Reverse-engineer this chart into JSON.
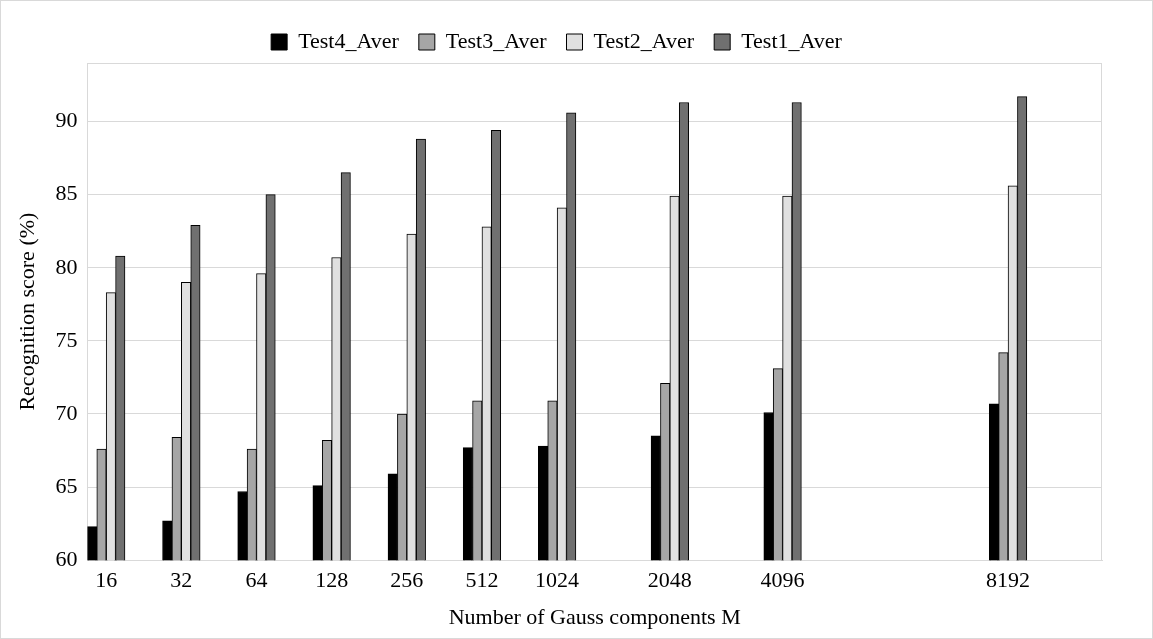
{
  "chart_data": {
    "type": "bar",
    "xlabel": "Number of Gauss components M",
    "ylabel": "Recognition score (%)",
    "categories": [
      "16",
      null,
      "32",
      null,
      "64",
      null,
      "128",
      null,
      "256",
      null,
      "512",
      null,
      "1024",
      null,
      null,
      "2048",
      null,
      null,
      "4096",
      null,
      null,
      null,
      null,
      null,
      "8192",
      null,
      null
    ],
    "series": [
      {
        "name": "Test4_Aver",
        "color": "#000000",
        "values": [
          62.3,
          null,
          62.7,
          null,
          64.7,
          null,
          65.1,
          null,
          65.9,
          null,
          67.7,
          null,
          67.8,
          null,
          null,
          68.5,
          null,
          null,
          70.1,
          null,
          null,
          null,
          null,
          null,
          70.7,
          null,
          null
        ]
      },
      {
        "name": "Test3_Aver",
        "color": "#a6a6a6",
        "values": [
          67.6,
          null,
          68.4,
          null,
          67.6,
          null,
          68.2,
          null,
          70.0,
          null,
          70.9,
          null,
          70.9,
          null,
          null,
          72.1,
          null,
          null,
          73.1,
          null,
          null,
          null,
          null,
          null,
          74.2,
          null,
          null
        ]
      },
      {
        "name": "Test2_Aver",
        "color": "#e0e0e0",
        "values": [
          78.3,
          null,
          79.0,
          null,
          79.6,
          null,
          80.7,
          null,
          82.3,
          null,
          82.8,
          null,
          84.1,
          null,
          null,
          84.9,
          null,
          null,
          84.9,
          null,
          null,
          null,
          null,
          null,
          85.6,
          null,
          null
        ]
      },
      {
        "name": "Test1_Aver",
        "color": "#707070",
        "values": [
          80.8,
          null,
          82.9,
          null,
          85.0,
          null,
          86.5,
          null,
          88.8,
          null,
          89.4,
          null,
          90.6,
          null,
          null,
          91.3,
          null,
          null,
          91.3,
          null,
          null,
          null,
          null,
          null,
          91.7,
          null,
          null
        ]
      }
    ],
    "ylim": [
      60,
      94
    ],
    "yticks": [
      60,
      65,
      70,
      75,
      80,
      85,
      90
    ],
    "grid": "y",
    "legend": "top"
  }
}
